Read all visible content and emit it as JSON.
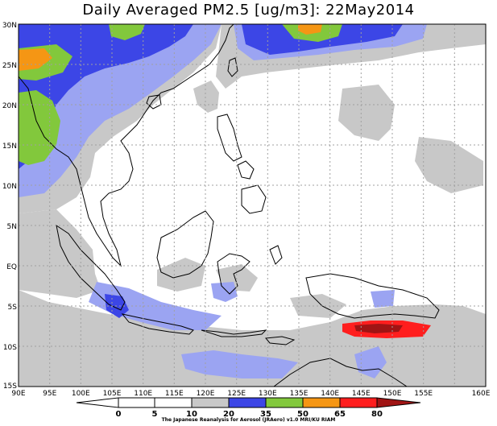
{
  "title": "Daily Averaged PM2.5 [ug/m3]: 22May2014",
  "lon_labels": [
    "90E",
    "95E",
    "100E",
    "105E",
    "110E",
    "115E",
    "120E",
    "125E",
    "130E",
    "135E",
    "140E",
    "145E",
    "150E",
    "155E",
    "160E"
  ],
  "lat_labels": [
    "30N",
    "25N",
    "20N",
    "15N",
    "10N",
    "5N",
    "EQ",
    "5S",
    "10S",
    "15S"
  ],
  "colorbar": {
    "levels": [
      "0",
      "5",
      "10",
      "20",
      "35",
      "50",
      "65",
      "80"
    ],
    "colors": [
      "#ffffff",
      "#ffffff",
      "#c8c8c8",
      "#9ba4f2",
      "#3c46e6",
      "#82c83c",
      "#f59614",
      "#ff1e1e",
      "#a01414"
    ]
  },
  "credit": "The Japanese Reanalysis for Aerosol (JRAero) v1.0 MRI/KU RIAM"
}
